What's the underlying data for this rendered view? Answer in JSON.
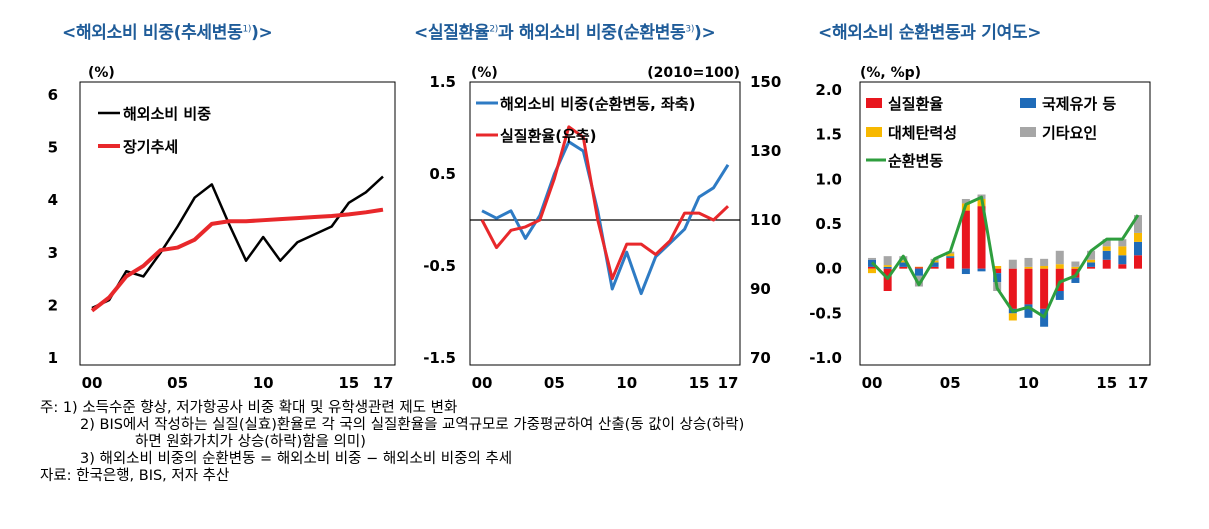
{
  "titles": {
    "left": "<해외소비 비중(추세변동",
    "left_sup": "1)",
    "left_end": ")>",
    "middle": "<실질환율",
    "middle_sup1": "2)",
    "middle_mid": "과 해외소비 비중(순환변동",
    "middle_sup2": "3)",
    "middle_end": ")>",
    "right": "<해외소비 순환변동과 기여도>"
  },
  "notes": {
    "n1": "주: 1) 소득수준 향상, 저가항공사 비중 확대 및 유학생관련 제도 변화",
    "n2": "2) BIS에서 작성하는 실질(실효)환율로 각 국의 실질환율을 교역규모로 가중평균하여 산출(동 값이 상승(하락)",
    "n2b": "하면 원화가치가 상승(하락)함을 의미)",
    "n3": "3) 해외소비 비중의 순환변동 = 해외소비 비중 − 해외소비 비중의 추세",
    "source": "자료: 한국은행, BIS, 저자 추산"
  },
  "chart_data": [
    {
      "type": "line",
      "unit_label": "(%)",
      "ylim": [
        1,
        6
      ],
      "yticks": [
        "1",
        "2",
        "3",
        "4",
        "5",
        "6"
      ],
      "xticks": [
        "00",
        "05",
        "10",
        "15",
        "17"
      ],
      "x": [
        2000,
        2001,
        2002,
        2003,
        2004,
        2005,
        2006,
        2007,
        2008,
        2009,
        2010,
        2011,
        2012,
        2013,
        2014,
        2015,
        2016,
        2017
      ],
      "legend_position": "top-left",
      "series": [
        {
          "name": "해외소비 비중",
          "color": "#000000",
          "values": [
            1.95,
            2.1,
            2.65,
            2.55,
            3.0,
            3.5,
            4.05,
            4.3,
            3.55,
            2.85,
            3.3,
            2.85,
            3.2,
            3.35,
            3.5,
            3.95,
            4.15,
            4.45
          ]
        },
        {
          "name": "장기추세",
          "color": "#e8282b",
          "values": [
            1.9,
            2.15,
            2.55,
            2.75,
            3.05,
            3.1,
            3.25,
            3.55,
            3.6,
            3.6,
            3.62,
            3.64,
            3.66,
            3.68,
            3.7,
            3.73,
            3.77,
            3.82
          ]
        }
      ]
    },
    {
      "type": "line",
      "unit_label_left": "(%)",
      "unit_label_right": "(2010=100)",
      "ylim_left": [
        -1.5,
        1.5
      ],
      "ylim_right": [
        70,
        150
      ],
      "yticks_left": [
        "-1.5",
        "-0.5",
        "0.5",
        "1.5"
      ],
      "yticks_right": [
        "70",
        "90",
        "110",
        "130",
        "150"
      ],
      "xticks": [
        "00",
        "05",
        "10",
        "15",
        "17"
      ],
      "x": [
        2000,
        2001,
        2002,
        2003,
        2004,
        2005,
        2006,
        2007,
        2008,
        2009,
        2010,
        2011,
        2012,
        2013,
        2014,
        2015,
        2016,
        2017
      ],
      "legend_position": "top-left",
      "series": [
        {
          "name": "해외소비 비중(순환변동, 좌축)",
          "axis": "left",
          "color": "#2e7bc4",
          "values": [
            0.1,
            0.02,
            0.1,
            -0.2,
            0.05,
            0.5,
            0.85,
            0.75,
            0.1,
            -0.75,
            -0.35,
            -0.8,
            -0.4,
            -0.25,
            -0.1,
            0.25,
            0.35,
            0.6
          ]
        },
        {
          "name": "실질환율(우축)",
          "axis": "right",
          "color": "#e8282b",
          "values": [
            110,
            102,
            107,
            108,
            110,
            122,
            137,
            134,
            110,
            93,
            103,
            103,
            100,
            104,
            112,
            112,
            110,
            114
          ]
        }
      ]
    },
    {
      "type": "bar",
      "stacked": true,
      "unit_label": "(%, %p)",
      "ylim": [
        -1.0,
        2.0
      ],
      "yticks": [
        "-1.0",
        "-0.5",
        "0.0",
        "0.5",
        "1.0",
        "1.5",
        "2.0"
      ],
      "xticks": [
        "00",
        "05",
        "10",
        "15",
        "17"
      ],
      "x": [
        2000,
        2001,
        2002,
        2003,
        2004,
        2005,
        2006,
        2007,
        2008,
        2009,
        2010,
        2011,
        2012,
        2013,
        2014,
        2015,
        2016,
        2017
      ],
      "legend_position": "top-left",
      "series": [
        {
          "name": "실질환율",
          "color": "#e8161e",
          "values": [
            0.02,
            -0.25,
            0.02,
            0.02,
            0.02,
            0.12,
            0.65,
            0.7,
            -0.05,
            -0.45,
            -0.4,
            -0.45,
            -0.25,
            -0.1,
            0.02,
            0.1,
            0.05,
            0.15
          ]
        },
        {
          "name": "국제유가 등",
          "color": "#1f6bb8",
          "values": [
            0.08,
            0.02,
            0.05,
            -0.08,
            0.05,
            0.02,
            -0.06,
            -0.03,
            -0.1,
            -0.05,
            -0.15,
            -0.2,
            -0.1,
            -0.06,
            0.05,
            0.1,
            0.1,
            0.15
          ]
        },
        {
          "name": "대체탄력성",
          "color": "#f7b800",
          "values": [
            -0.05,
            0.02,
            0.02,
            0.0,
            0.02,
            0.03,
            0.08,
            0.08,
            0.03,
            -0.08,
            0.02,
            0.03,
            0.05,
            0.02,
            0.03,
            0.05,
            0.1,
            0.1
          ]
        },
        {
          "name": "기타요인",
          "color": "#a6a6a6",
          "values": [
            0.02,
            0.1,
            0.05,
            -0.12,
            0.02,
            0.02,
            0.05,
            0.05,
            -0.1,
            0.1,
            0.1,
            0.08,
            0.15,
            0.06,
            0.1,
            0.08,
            0.08,
            0.2
          ]
        },
        {
          "name": "순환변동",
          "color": "#2e9e3e",
          "kind": "line",
          "values": [
            0.07,
            -0.11,
            0.14,
            -0.18,
            0.11,
            0.19,
            0.72,
            0.8,
            -0.22,
            -0.48,
            -0.43,
            -0.54,
            -0.15,
            -0.08,
            0.2,
            0.33,
            0.33,
            0.6
          ]
        }
      ]
    }
  ]
}
